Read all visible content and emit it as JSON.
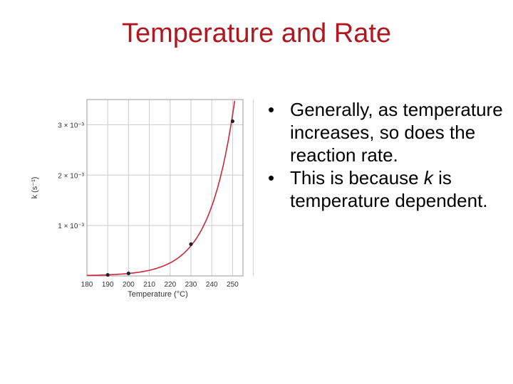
{
  "slide": {
    "title": "Temperature and Rate",
    "bullets": [
      {
        "text": "Generally, as temperature increases, so does the reaction rate."
      },
      {
        "before": "This is because ",
        "italic": "k",
        "after": " is temperature dependent."
      }
    ]
  },
  "colors": {
    "title": "#b0171f",
    "curve": "#c8283a",
    "point": "#222222",
    "grid": "#cccccc"
  },
  "chart_data": {
    "type": "scatter",
    "title": "",
    "xlabel": "Temperature (°C)",
    "ylabel": "k (s⁻¹)",
    "xlim": [
      180,
      255
    ],
    "ylim": [
      0,
      0.0035
    ],
    "x_ticks": [
      180,
      190,
      200,
      210,
      220,
      230,
      240,
      250
    ],
    "y_ticks": [
      {
        "value": 0.001,
        "label": "1 × 10⁻³"
      },
      {
        "value": 0.002,
        "label": "2 × 10⁻³"
      },
      {
        "value": 0.003,
        "label": "3 × 10⁻³"
      }
    ],
    "grid": true,
    "legend": "none",
    "series": [
      {
        "x": [
          190,
          200,
          230,
          250
        ],
        "y": [
          2e-05,
          5e-05,
          0.00063,
          0.00307
        ]
      }
    ],
    "fit_curve": "exponential"
  }
}
